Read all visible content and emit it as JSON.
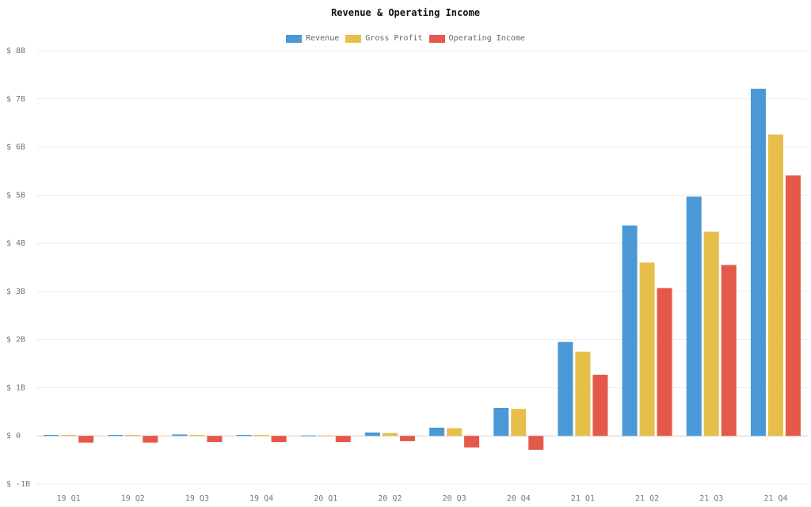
{
  "chart_data": {
    "type": "bar",
    "title": "Revenue & Operating Income",
    "categories": [
      "19 Q1",
      "19 Q2",
      "19 Q3",
      "19 Q4",
      "20 Q1",
      "20 Q2",
      "20 Q3",
      "20 Q4",
      "21 Q1",
      "21 Q2",
      "21 Q3",
      "21 Q4"
    ],
    "series": [
      {
        "name": "Revenue",
        "color": "#4a98d6",
        "values": [
          0.02,
          0.02,
          0.03,
          0.02,
          0.01,
          0.07,
          0.17,
          0.58,
          1.95,
          4.37,
          4.97,
          7.21
        ]
      },
      {
        "name": "Gross Profit",
        "color": "#e6be4a",
        "values": [
          0.02,
          0.02,
          0.02,
          0.02,
          0.01,
          0.06,
          0.16,
          0.56,
          1.75,
          3.6,
          4.24,
          6.26
        ]
      },
      {
        "name": "Operating Income",
        "color": "#e5594a",
        "values": [
          -0.14,
          -0.14,
          -0.13,
          -0.13,
          -0.13,
          -0.11,
          -0.24,
          -0.29,
          1.27,
          3.07,
          3.55,
          5.41
        ]
      }
    ],
    "y_ticks": [
      "$ -1B",
      "$ 0",
      "$ 1B",
      "$ 2B",
      "$ 3B",
      "$ 4B",
      "$ 5B",
      "$ 6B",
      "$ 7B",
      "$ 8B"
    ],
    "ylim": [
      -1,
      8
    ],
    "legend_position": "top-center",
    "grid": true
  }
}
